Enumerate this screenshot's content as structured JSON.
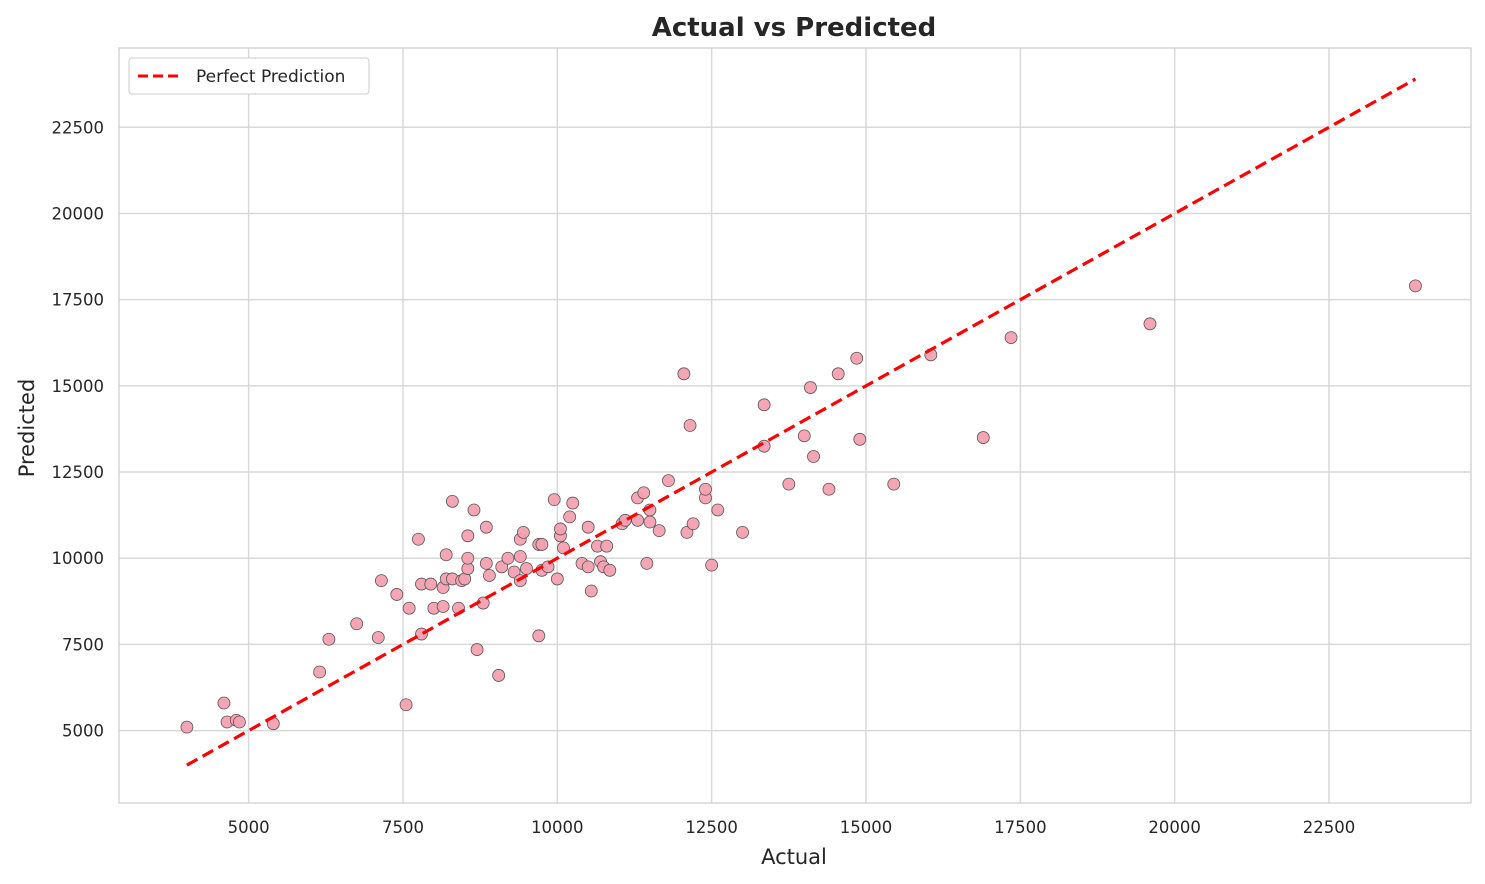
{
  "chart_data": {
    "type": "scatter",
    "title": "Actual vs Predicted",
    "xlabel": "Actual",
    "ylabel": "Predicted",
    "xlim": [
      2900,
      24800
    ],
    "ylim": [
      2900,
      24800
    ],
    "xticks": [
      5000,
      7500,
      10000,
      12500,
      15000,
      17500,
      20000,
      22500
    ],
    "yticks": [
      5000,
      7500,
      10000,
      12500,
      15000,
      17500,
      20000,
      22500
    ],
    "grid": true,
    "legend": {
      "position": "top-left",
      "entries": [
        "Perfect Prediction"
      ]
    },
    "colors": {
      "points": "#f4a0b0",
      "point_edge": "#555555",
      "line": "#ff0000",
      "grid": "#d9d9d9",
      "frame": "#cccccc"
    },
    "series": [
      {
        "name": "",
        "kind": "scatter",
        "points": [
          [
            4000,
            5100
          ],
          [
            4600,
            5800
          ],
          [
            4650,
            5250
          ],
          [
            4800,
            5300
          ],
          [
            4850,
            5250
          ],
          [
            5400,
            5200
          ],
          [
            6150,
            6700
          ],
          [
            6300,
            7650
          ],
          [
            6750,
            8100
          ],
          [
            7100,
            7700
          ],
          [
            7150,
            9350
          ],
          [
            7400,
            8950
          ],
          [
            7550,
            5750
          ],
          [
            7600,
            8550
          ],
          [
            7750,
            10550
          ],
          [
            7800,
            9250
          ],
          [
            7800,
            7800
          ],
          [
            7950,
            9250
          ],
          [
            8000,
            8550
          ],
          [
            8150,
            8600
          ],
          [
            8150,
            9150
          ],
          [
            8200,
            9400
          ],
          [
            8200,
            10100
          ],
          [
            8300,
            9400
          ],
          [
            8300,
            11650
          ],
          [
            8400,
            8550
          ],
          [
            8450,
            9350
          ],
          [
            8500,
            9400
          ],
          [
            8550,
            9700
          ],
          [
            8550,
            10000
          ],
          [
            8550,
            10650
          ],
          [
            8650,
            11400
          ],
          [
            8700,
            7350
          ],
          [
            8800,
            8700
          ],
          [
            8850,
            9850
          ],
          [
            8850,
            10900
          ],
          [
            8900,
            9500
          ],
          [
            9050,
            6600
          ],
          [
            9100,
            9750
          ],
          [
            9200,
            10000
          ],
          [
            9300,
            9600
          ],
          [
            9400,
            9350
          ],
          [
            9400,
            10050
          ],
          [
            9400,
            10550
          ],
          [
            9450,
            10750
          ],
          [
            9500,
            9700
          ],
          [
            9700,
            10400
          ],
          [
            9700,
            7750
          ],
          [
            9750,
            9650
          ],
          [
            9750,
            10400
          ],
          [
            9850,
            9750
          ],
          [
            9950,
            11700
          ],
          [
            10000,
            9400
          ],
          [
            10050,
            10650
          ],
          [
            10050,
            10850
          ],
          [
            10100,
            10300
          ],
          [
            10200,
            11200
          ],
          [
            10250,
            11600
          ],
          [
            10400,
            9850
          ],
          [
            10500,
            10900
          ],
          [
            10500,
            9750
          ],
          [
            10550,
            9050
          ],
          [
            10650,
            10350
          ],
          [
            10700,
            9900
          ],
          [
            10750,
            9750
          ],
          [
            10800,
            10350
          ],
          [
            10850,
            9650
          ],
          [
            11050,
            11000
          ],
          [
            11100,
            11100
          ],
          [
            11300,
            11100
          ],
          [
            11300,
            11750
          ],
          [
            11400,
            11900
          ],
          [
            11450,
            9850
          ],
          [
            11500,
            11050
          ],
          [
            11500,
            11400
          ],
          [
            11650,
            10800
          ],
          [
            11800,
            12250
          ],
          [
            12050,
            15350
          ],
          [
            12100,
            10750
          ],
          [
            12150,
            13850
          ],
          [
            12200,
            11000
          ],
          [
            12400,
            11750
          ],
          [
            12400,
            12000
          ],
          [
            12500,
            9800
          ],
          [
            12600,
            11400
          ],
          [
            13000,
            10750
          ],
          [
            13350,
            14450
          ],
          [
            13350,
            13250
          ],
          [
            13750,
            12150
          ],
          [
            14000,
            13550
          ],
          [
            14100,
            14950
          ],
          [
            14150,
            12950
          ],
          [
            14400,
            12000
          ],
          [
            14550,
            15350
          ],
          [
            14850,
            15800
          ],
          [
            14900,
            13450
          ],
          [
            15450,
            12150
          ],
          [
            16050,
            15900
          ],
          [
            16900,
            13500
          ],
          [
            17350,
            16400
          ],
          [
            19600,
            16800
          ],
          [
            23900,
            17900
          ]
        ]
      },
      {
        "name": "Perfect Prediction",
        "kind": "line",
        "points": [
          [
            4000,
            4000
          ],
          [
            23900,
            23900
          ]
        ]
      }
    ]
  }
}
